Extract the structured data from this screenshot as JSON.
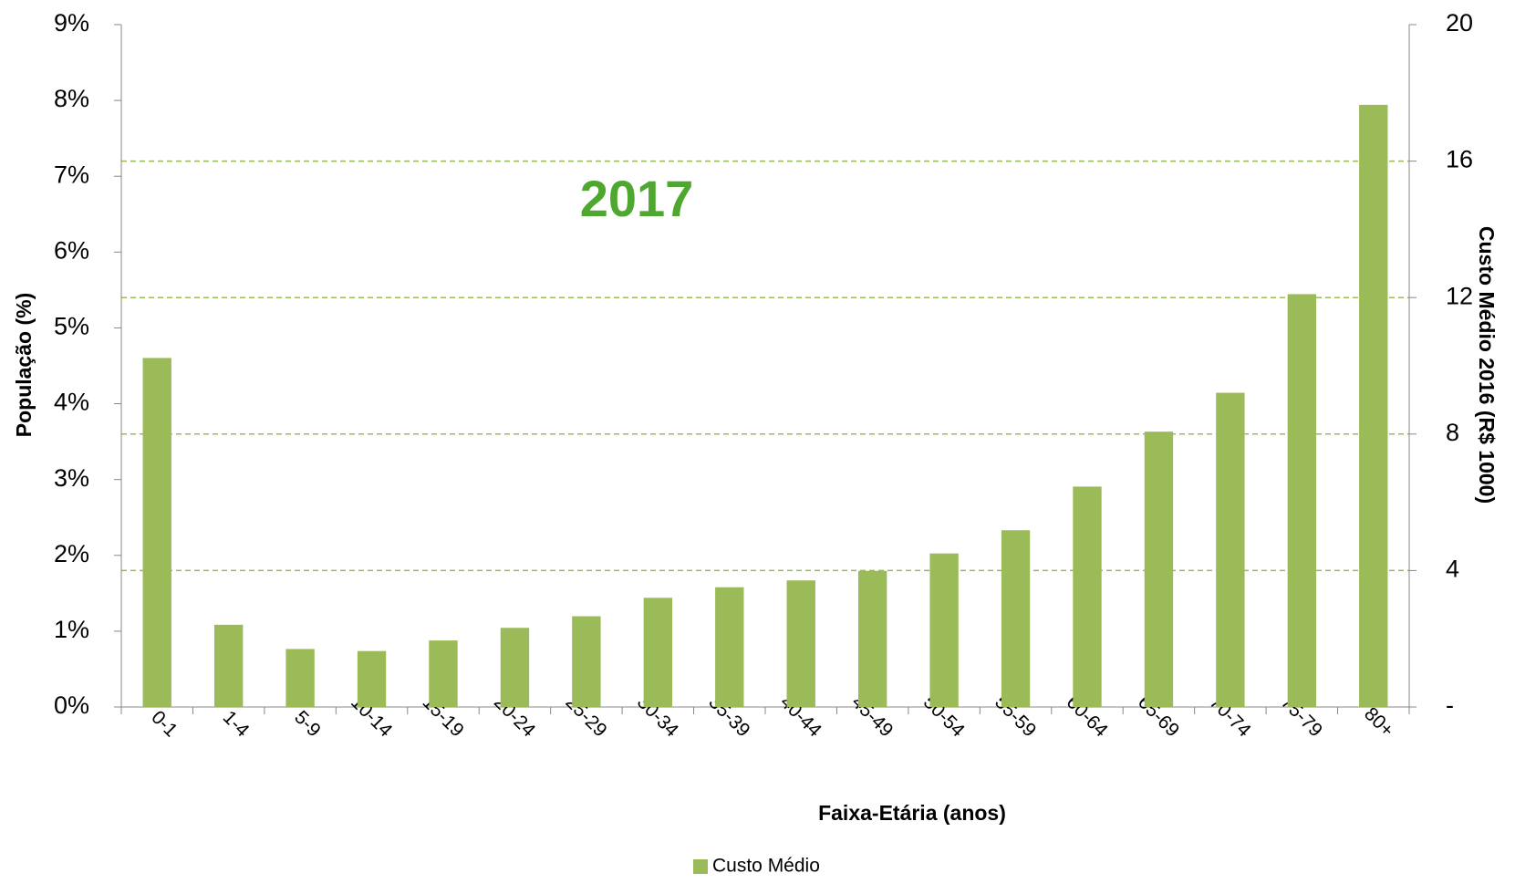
{
  "chart_data": {
    "type": "bar",
    "annotation": "2017",
    "xlabel": "Faixa-Etária (anos)",
    "ylabel": "População (%)",
    "y2label": "Custo Médio 2016 (R$ 1000)",
    "categories": [
      "0-1",
      "1-4",
      "5-9",
      "10-14",
      "15-19",
      "20-24",
      "25-29",
      "30-34",
      "35-39",
      "40-44",
      "45-49",
      "50-54",
      "55-59",
      "60-64",
      "65-69",
      "70-74",
      "75-79",
      "80+"
    ],
    "series": [
      {
        "name": "Custo Médio",
        "color": "#9bbb59",
        "axis": "y2",
        "values": [
          10.23,
          2.41,
          1.7,
          1.64,
          1.95,
          2.32,
          2.66,
          3.2,
          3.51,
          3.71,
          3.99,
          4.5,
          5.18,
          6.46,
          8.07,
          9.21,
          12.1,
          17.65
        ]
      }
    ],
    "ylim": [
      0,
      9
    ],
    "yticks": [
      {
        "value": 0,
        "label": "0%"
      },
      {
        "value": 1,
        "label": "1%"
      },
      {
        "value": 2,
        "label": "2%"
      },
      {
        "value": 3,
        "label": "3%"
      },
      {
        "value": 4,
        "label": "4%"
      },
      {
        "value": 5,
        "label": "5%"
      },
      {
        "value": 6,
        "label": "6%"
      },
      {
        "value": 7,
        "label": "7%"
      },
      {
        "value": 8,
        "label": "8%"
      },
      {
        "value": 9,
        "label": "9%"
      }
    ],
    "y2lim": [
      0,
      20
    ],
    "y2ticks": [
      {
        "value": 0,
        "label": "-"
      },
      4,
      8,
      12,
      16,
      20
    ],
    "grid": true,
    "grid_color": "#9bbb59",
    "annotation_color": "#4ea72e",
    "legend": "bottom"
  }
}
